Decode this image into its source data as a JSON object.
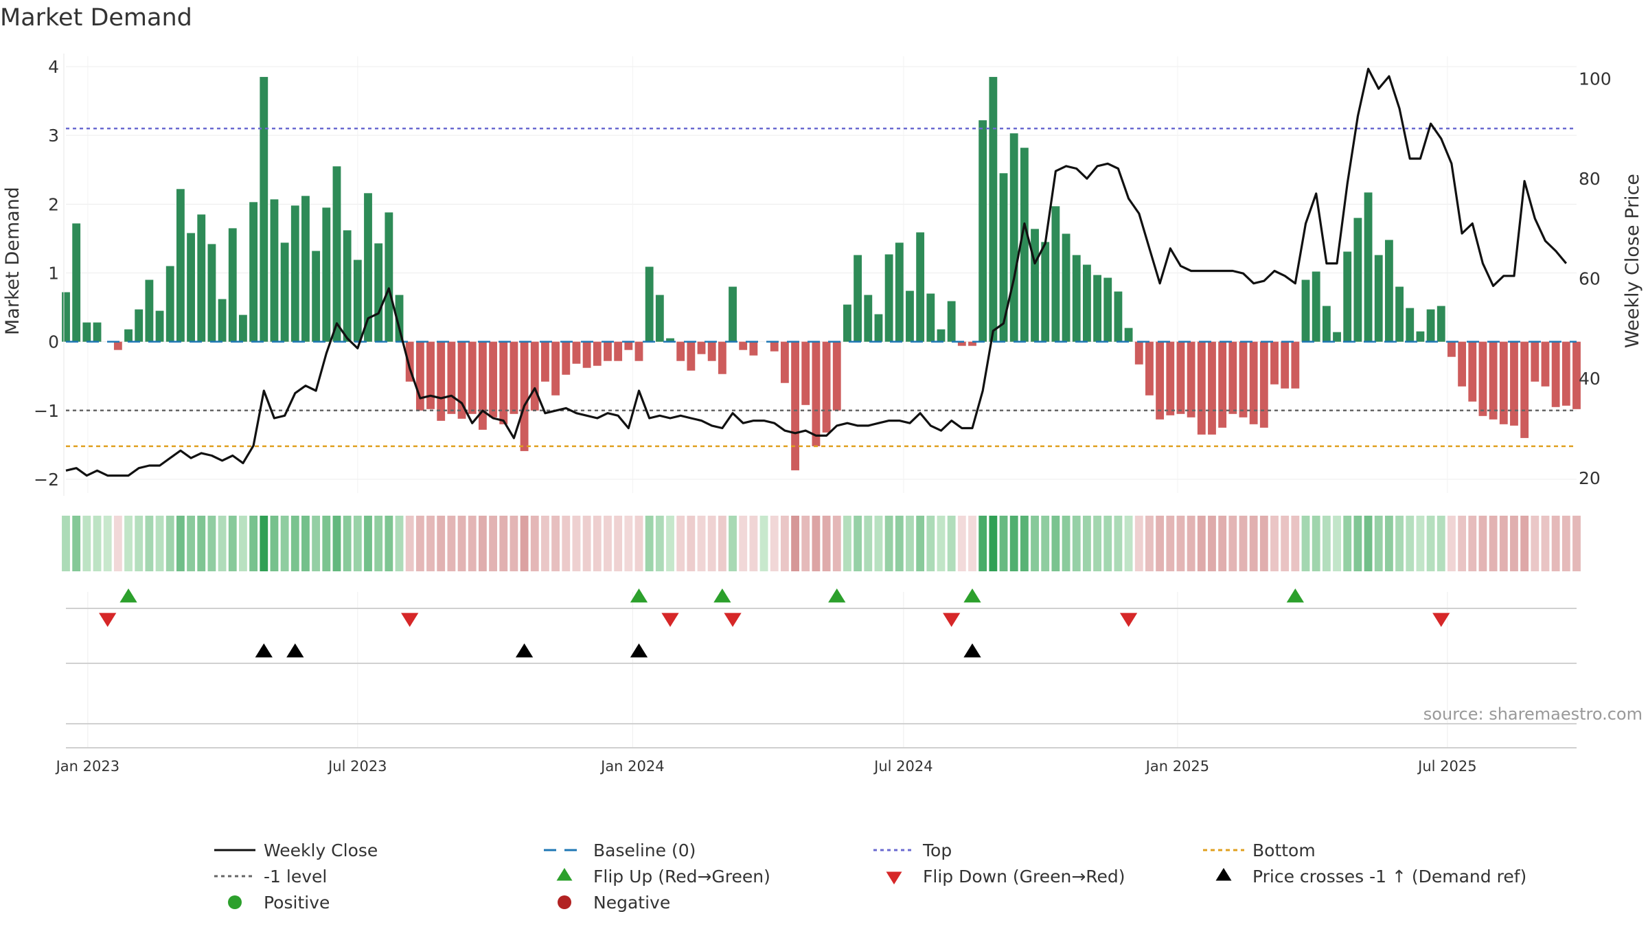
{
  "colors": {
    "positive_bar": "#2e8b57",
    "negative_bar": "#cd5c5c",
    "price_line": "#111111",
    "baseline": "#1f77b4",
    "top_line": "#6a6ad0",
    "minus1_line": "#666666",
    "bottom_line": "#e0a020",
    "flip_up": "#2ca02c",
    "flip_down": "#d62728",
    "cross_marker": "#000000",
    "positive_dot": "#2ca02c",
    "negative_dot": "#b22222"
  },
  "source": "source: sharemaestro.com",
  "chart_data": {
    "type": "bar",
    "title": "Market Demand",
    "ylabel": "Market Demand",
    "y2label": "Weekly Close Price",
    "ylim": [
      -2.2,
      4.15
    ],
    "y2lim": [
      17,
      104.5
    ],
    "yticks": [
      -2,
      -1,
      0,
      1,
      2,
      3,
      4
    ],
    "y2ticks": [
      20,
      40,
      60,
      80,
      100
    ],
    "grid": true,
    "reference_lines": {
      "baseline": 0,
      "top": 3.1,
      "minus1": -1,
      "bottom": -1.52
    },
    "start_week": "2022-12-18",
    "x_range_weeks": [
      0,
      145
    ],
    "xticks": [
      {
        "label": "Jan 2023",
        "week": 2.1
      },
      {
        "label": "Jul 2023",
        "week": 28.0
      },
      {
        "label": "Jan 2024",
        "week": 54.4
      },
      {
        "label": "Jul 2024",
        "week": 80.4
      },
      {
        "label": "Jan 2025",
        "week": 106.7
      },
      {
        "label": "Jul 2025",
        "week": 132.6
      }
    ],
    "demand": [
      0.72,
      1.72,
      0.28,
      0.28,
      0.0,
      -0.12,
      0.18,
      0.47,
      0.9,
      0.45,
      1.1,
      2.22,
      1.58,
      1.85,
      1.42,
      0.62,
      1.65,
      0.39,
      2.03,
      3.85,
      2.07,
      1.44,
      1.98,
      2.12,
      1.32,
      1.95,
      2.55,
      1.62,
      1.19,
      2.16,
      1.43,
      1.88,
      0.68,
      -0.58,
      -1.0,
      -0.98,
      -1.15,
      -1.05,
      -1.12,
      -1.05,
      -1.28,
      -1.1,
      -1.2,
      -1.05,
      -1.59,
      -1.0,
      -0.58,
      -0.78,
      -0.48,
      -0.32,
      -0.38,
      -0.35,
      -0.28,
      -0.28,
      -0.12,
      -0.28,
      1.09,
      0.68,
      0.05,
      -0.28,
      -0.42,
      -0.18,
      -0.28,
      -0.47,
      0.8,
      -0.12,
      -0.2,
      0.0,
      -0.14,
      -0.6,
      -1.87,
      -0.92,
      -1.52,
      -1.32,
      -1.0,
      0.54,
      1.26,
      0.68,
      0.4,
      1.27,
      1.44,
      0.74,
      1.59,
      0.7,
      0.18,
      0.59,
      -0.06,
      -0.06,
      3.22,
      3.85,
      2.45,
      3.03,
      2.82,
      1.64,
      1.45,
      1.97,
      1.57,
      1.26,
      1.12,
      0.97,
      0.93,
      0.73,
      0.2,
      -0.33,
      -0.78,
      -1.13,
      -1.07,
      -1.05,
      -1.1,
      -1.35,
      -1.35,
      -1.25,
      -1.05,
      -1.1,
      -1.2,
      -1.25,
      -0.62,
      -0.68,
      -0.68,
      0.9,
      1.02,
      0.52,
      0.14,
      1.31,
      1.8,
      2.17,
      1.26,
      1.48,
      0.8,
      0.49,
      0.15,
      0.47,
      0.52,
      -0.22,
      -0.65,
      -0.87,
      -1.08,
      -1.13,
      -1.2,
      -1.22,
      -1.4,
      -0.58,
      -0.65,
      -0.95,
      -0.93,
      -0.98
    ],
    "price": [
      21.5,
      22,
      20.5,
      21.5,
      20.5,
      20.5,
      20.5,
      22,
      22.5,
      22.5,
      24,
      25.5,
      24,
      25,
      24.5,
      23.5,
      24.5,
      23,
      26.5,
      37.5,
      32,
      32.5,
      37,
      38.5,
      37.5,
      45,
      51,
      48,
      46,
      52,
      53,
      58,
      50,
      42,
      36,
      36.5,
      36,
      36.5,
      35,
      31,
      33.5,
      32,
      31.5,
      28,
      34.5,
      38,
      33,
      33.5,
      34,
      33,
      32.5,
      32,
      33,
      32.5,
      30,
      37.5,
      32,
      32.5,
      32,
      32.5,
      32,
      31.5,
      30.5,
      30,
      33,
      31,
      31.5,
      31.5,
      31,
      29.5,
      29,
      29.5,
      28.5,
      28.5,
      30.5,
      31,
      30.5,
      30.5,
      31,
      31.5,
      31.5,
      31,
      33,
      30.5,
      29.5,
      31.5,
      30,
      30,
      37.5,
      49.5,
      51,
      60,
      71,
      63,
      67,
      81.5,
      82.5,
      82,
      80,
      82.5,
      83,
      82,
      76,
      73,
      66,
      59,
      66,
      62.5,
      61.5,
      61.5,
      61.5,
      61.5,
      61.5,
      61,
      59,
      59.5,
      61.5,
      60.5,
      59,
      71,
      77,
      63,
      63,
      79,
      92.5,
      102,
      98,
      100.5,
      94,
      84,
      84,
      91,
      88,
      83,
      69,
      71,
      63,
      58.5,
      60.5,
      60.5,
      79.5,
      72,
      67.5,
      65.5,
      63
    ],
    "flip_up_weeks": [
      6,
      55,
      63,
      74,
      87,
      118
    ],
    "flip_down_weeks": [
      4,
      33,
      58,
      64,
      85,
      102,
      132
    ],
    "cross_weeks": [
      19,
      22,
      44,
      55,
      87
    ],
    "legend": [
      [
        "Weekly Close",
        "Baseline (0)",
        "Top",
        "Bottom"
      ],
      [
        "-1 level",
        "Flip Up (Red→Green)",
        "Flip Down (Green→Red)",
        "Price crosses -1 ↑ (Demand ref)"
      ],
      [
        "Positive",
        "Negative"
      ]
    ]
  }
}
